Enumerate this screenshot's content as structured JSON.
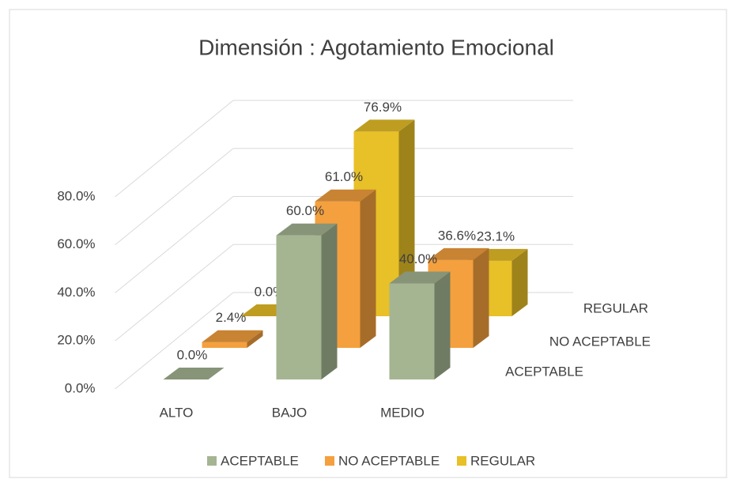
{
  "chart_data": {
    "type": "bar3d",
    "title": "Dimensión : Agotamiento Emocional",
    "categories": [
      "ALTO",
      "BAJO",
      "MEDIO"
    ],
    "series": [
      {
        "name": "ACEPTABLE",
        "color": "#a5b592",
        "values": [
          0,
          60,
          40
        ],
        "value_labels": [
          "0.0%",
          "60.0%",
          "40.0%"
        ]
      },
      {
        "name": "NO ACEPTABLE",
        "color": "#f4a03e",
        "values": [
          2.4,
          61,
          36.6
        ],
        "value_labels": [
          "2.4%",
          "61.0%",
          "36.6%"
        ]
      },
      {
        "name": "REGULAR",
        "color": "#e8c027",
        "values": [
          0,
          76.9,
          23.1
        ],
        "value_labels": [
          "0.0%",
          "76.9%",
          "23.1%"
        ]
      }
    ],
    "ylim": [
      0,
      80
    ],
    "yticks": [
      {
        "value": 0,
        "label": "0.0%"
      },
      {
        "value": 20,
        "label": "20.0%"
      },
      {
        "value": 40,
        "label": "40.0%"
      },
      {
        "value": 60,
        "label": "60.0%"
      },
      {
        "value": 80,
        "label": "80.0%"
      }
    ],
    "grid": true,
    "legend": "bottom"
  }
}
